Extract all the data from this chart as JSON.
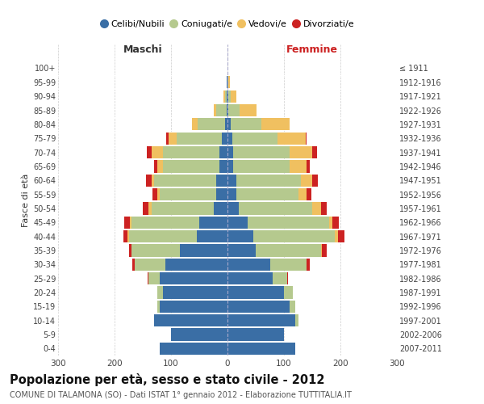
{
  "age_groups": [
    "0-4",
    "5-9",
    "10-14",
    "15-19",
    "20-24",
    "25-29",
    "30-34",
    "35-39",
    "40-44",
    "45-49",
    "50-54",
    "55-59",
    "60-64",
    "65-69",
    "70-74",
    "75-79",
    "80-84",
    "85-89",
    "90-94",
    "95-99",
    "100+"
  ],
  "birth_years": [
    "2007-2011",
    "2002-2006",
    "1997-2001",
    "1992-1996",
    "1987-1991",
    "1982-1986",
    "1977-1981",
    "1972-1976",
    "1967-1971",
    "1962-1966",
    "1957-1961",
    "1952-1956",
    "1947-1951",
    "1942-1946",
    "1937-1941",
    "1932-1936",
    "1927-1931",
    "1922-1926",
    "1917-1921",
    "1912-1916",
    "≤ 1911"
  ],
  "males_celibe": [
    120,
    100,
    130,
    120,
    115,
    120,
    110,
    85,
    55,
    50,
    25,
    20,
    20,
    15,
    15,
    10,
    5,
    2,
    2,
    1,
    0
  ],
  "males_coniugato": [
    0,
    0,
    0,
    5,
    10,
    20,
    55,
    85,
    120,
    120,
    110,
    100,
    110,
    100,
    100,
    80,
    48,
    18,
    3,
    1,
    0
  ],
  "males_vedovo": [
    0,
    0,
    0,
    0,
    0,
    0,
    0,
    0,
    2,
    3,
    5,
    5,
    5,
    10,
    20,
    15,
    10,
    5,
    2,
    0,
    0
  ],
  "males_divorziato": [
    0,
    0,
    0,
    0,
    0,
    2,
    3,
    5,
    8,
    10,
    10,
    8,
    10,
    5,
    8,
    3,
    0,
    0,
    0,
    0,
    0
  ],
  "females_nubile": [
    120,
    100,
    120,
    110,
    100,
    80,
    75,
    50,
    45,
    35,
    20,
    15,
    15,
    10,
    10,
    8,
    5,
    2,
    1,
    0,
    0
  ],
  "females_coniugata": [
    0,
    0,
    5,
    10,
    15,
    25,
    65,
    115,
    145,
    145,
    130,
    110,
    115,
    100,
    100,
    80,
    55,
    20,
    5,
    2,
    0
  ],
  "females_vedova": [
    0,
    0,
    0,
    0,
    0,
    0,
    0,
    2,
    5,
    5,
    15,
    15,
    20,
    30,
    40,
    50,
    50,
    30,
    10,
    2,
    0
  ],
  "females_divorziata": [
    0,
    0,
    0,
    0,
    0,
    2,
    5,
    8,
    12,
    12,
    10,
    8,
    10,
    5,
    8,
    2,
    0,
    0,
    0,
    0,
    0
  ],
  "color_celibe": "#3a6ea5",
  "color_coniugato": "#b5c98e",
  "color_vedovo": "#f0c060",
  "color_divorziato": "#cc2222",
  "legend_labels": [
    "Celibi/Nubili",
    "Coniugati/e",
    "Vedovi/e",
    "Divorziati/e"
  ],
  "title": "Popolazione per età, sesso e stato civile - 2012",
  "subtitle": "COMUNE DI TALAMONA (SO) - Dati ISTAT 1° gennaio 2012 - Elaborazione TUTTITALIA.IT",
  "label_maschi": "Maschi",
  "label_femmine": "Femmine",
  "label_fasce": "Fasce di età",
  "xlim": 300
}
